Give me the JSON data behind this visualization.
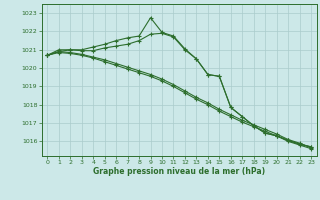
{
  "title": "Graphe pression niveau de la mer (hPa)",
  "bg_color": "#cce8e8",
  "grid_color": "#aacccc",
  "line_color": "#2d6e2d",
  "xlim": [
    -0.5,
    23.5
  ],
  "ylim": [
    1015.2,
    1023.5
  ],
  "yticks": [
    1016,
    1017,
    1018,
    1019,
    1020,
    1021,
    1022,
    1023
  ],
  "xticks": [
    0,
    1,
    2,
    3,
    4,
    5,
    6,
    7,
    8,
    9,
    10,
    11,
    12,
    13,
    14,
    15,
    16,
    17,
    18,
    19,
    20,
    21,
    22,
    23
  ],
  "series": [
    [
      1020.7,
      1020.9,
      1021.0,
      1021.0,
      1021.15,
      1021.3,
      1021.5,
      1021.65,
      1021.75,
      1022.75,
      1021.95,
      1021.75,
      1021.05,
      1020.5,
      1019.65,
      1019.55,
      1017.85,
      1017.35,
      1016.85,
      1016.45,
      1016.3,
      1016.05,
      1015.85,
      1015.7
    ],
    [
      1020.7,
      1021.0,
      1021.0,
      1020.95,
      1020.95,
      1021.1,
      1021.2,
      1021.3,
      1021.5,
      1021.85,
      1021.9,
      1021.7,
      1021.0,
      1020.5,
      1019.65,
      1019.55,
      1017.85,
      1017.35,
      1016.85,
      1016.45,
      1016.3,
      1016.05,
      1015.85,
      1015.7
    ],
    [
      1020.7,
      1020.9,
      1020.85,
      1020.75,
      1020.6,
      1020.45,
      1020.25,
      1020.05,
      1019.85,
      1019.65,
      1019.4,
      1019.1,
      1018.75,
      1018.4,
      1018.1,
      1017.75,
      1017.45,
      1017.15,
      1016.9,
      1016.65,
      1016.4,
      1016.1,
      1015.9,
      1015.65
    ],
    [
      1020.7,
      1020.85,
      1020.8,
      1020.7,
      1020.55,
      1020.35,
      1020.15,
      1019.95,
      1019.75,
      1019.55,
      1019.3,
      1019.0,
      1018.65,
      1018.3,
      1018.0,
      1017.65,
      1017.35,
      1017.05,
      1016.8,
      1016.55,
      1016.3,
      1016.0,
      1015.8,
      1015.6
    ]
  ]
}
